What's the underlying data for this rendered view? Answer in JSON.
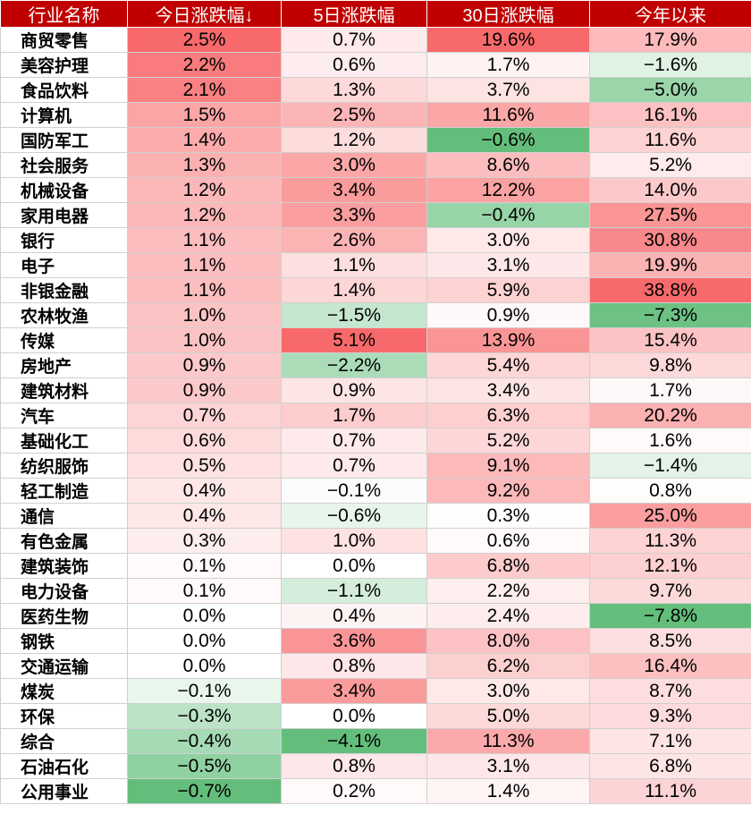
{
  "table": {
    "headers": [
      "行业名称",
      "今日涨跌幅↓",
      "5日涨跌幅",
      "30日涨跌幅",
      "今年以来"
    ],
    "rows": [
      [
        "商贸零售",
        "2.5%",
        "0.7%",
        "19.6%",
        "17.9%"
      ],
      [
        "美容护理",
        "2.2%",
        "0.6%",
        "1.7%",
        "−1.6%"
      ],
      [
        "食品饮料",
        "2.1%",
        "1.3%",
        "3.7%",
        "−5.0%"
      ],
      [
        "计算机",
        "1.5%",
        "2.5%",
        "11.6%",
        "16.1%"
      ],
      [
        "国防军工",
        "1.4%",
        "1.2%",
        "−0.6%",
        "11.6%"
      ],
      [
        "社会服务",
        "1.3%",
        "3.0%",
        "8.6%",
        "5.2%"
      ],
      [
        "机械设备",
        "1.2%",
        "3.4%",
        "12.2%",
        "14.0%"
      ],
      [
        "家用电器",
        "1.2%",
        "3.3%",
        "−0.4%",
        "27.5%"
      ],
      [
        "银行",
        "1.1%",
        "2.6%",
        "3.0%",
        "30.8%"
      ],
      [
        "电子",
        "1.1%",
        "1.1%",
        "3.1%",
        "19.9%"
      ],
      [
        "非银金融",
        "1.1%",
        "1.4%",
        "5.9%",
        "38.8%"
      ],
      [
        "农林牧渔",
        "1.0%",
        "−1.5%",
        "0.9%",
        "−7.3%"
      ],
      [
        "传媒",
        "1.0%",
        "5.1%",
        "13.9%",
        "15.4%"
      ],
      [
        "房地产",
        "0.9%",
        "−2.2%",
        "5.4%",
        "9.8%"
      ],
      [
        "建筑材料",
        "0.9%",
        "0.9%",
        "3.4%",
        "1.7%"
      ],
      [
        "汽车",
        "0.7%",
        "1.7%",
        "6.3%",
        "20.2%"
      ],
      [
        "基础化工",
        "0.6%",
        "0.7%",
        "5.2%",
        "1.6%"
      ],
      [
        "纺织服饰",
        "0.5%",
        "0.7%",
        "9.1%",
        "−1.4%"
      ],
      [
        "轻工制造",
        "0.4%",
        "−0.1%",
        "9.2%",
        "0.8%"
      ],
      [
        "通信",
        "0.4%",
        "−0.6%",
        "0.3%",
        "25.0%"
      ],
      [
        "有色金属",
        "0.3%",
        "1.0%",
        "0.6%",
        "11.3%"
      ],
      [
        "建筑装饰",
        "0.1%",
        "0.0%",
        "6.8%",
        "12.1%"
      ],
      [
        "电力设备",
        "0.1%",
        "−1.1%",
        "2.2%",
        "9.7%"
      ],
      [
        "医药生物",
        "0.0%",
        "0.4%",
        "2.4%",
        "−7.8%"
      ],
      [
        "钢铁",
        "0.0%",
        "3.6%",
        "8.0%",
        "8.5%"
      ],
      [
        "交通运输",
        "0.0%",
        "0.8%",
        "6.2%",
        "16.4%"
      ],
      [
        "煤炭",
        "−0.1%",
        "3.4%",
        "3.0%",
        "8.7%"
      ],
      [
        "环保",
        "−0.3%",
        "0.0%",
        "5.0%",
        "9.3%"
      ],
      [
        "综合",
        "−0.4%",
        "−4.1%",
        "11.3%",
        "7.1%"
      ],
      [
        "石油石化",
        "−0.5%",
        "0.8%",
        "3.1%",
        "6.8%"
      ],
      [
        "公用事业",
        "−0.7%",
        "0.2%",
        "1.4%",
        "11.1%"
      ]
    ]
  },
  "colors": {
    "header_bg": "#c00000",
    "header_text": "#ffffff",
    "positive_max": "#f8696b",
    "negative_max": "#63be7b",
    "neutral": "#ffffff"
  }
}
